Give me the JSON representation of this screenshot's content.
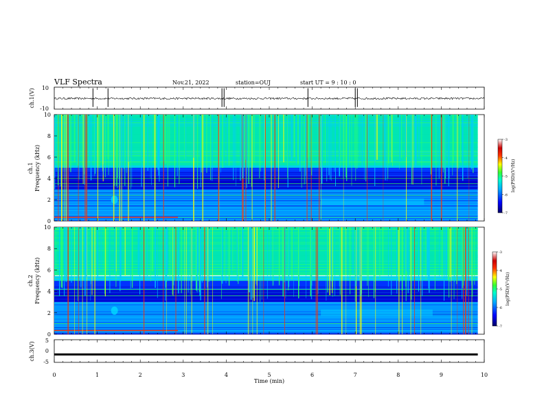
{
  "header": {
    "title": "VLF Spectra",
    "date": "Nov.21, 2022",
    "station": "station=OUJ",
    "start": "start  UT =   9 : 10 : 0"
  },
  "colors": {
    "colormap": [
      "#000066",
      "#0000cc",
      "#0033ff",
      "#0099ff",
      "#00ccff",
      "#00e6b3",
      "#33ff66",
      "#ccff33",
      "#ffff00",
      "#ff9900",
      "#ff3300",
      "#cc0000",
      "#ffcccc",
      "#ffffff"
    ],
    "trace": "#000000"
  },
  "chart_data": [
    {
      "type": "line",
      "name": "ch1-waveform",
      "ylabel": "ch.1(V)",
      "ylim": [
        -10,
        10
      ],
      "yticks": [
        "10",
        "-10"
      ],
      "xlim": [
        0,
        10
      ],
      "series": [
        {
          "values_approx": "noise centered near 0 V, amplitude about ±1 V with occasional spikes"
        }
      ]
    },
    {
      "type": "heatmap",
      "name": "ch1-spectrogram",
      "ylabel_line1": "ch.1",
      "ylabel_line2": "Frequency (kHz)",
      "ylim": [
        0,
        10
      ],
      "yticks": [
        "0",
        "2",
        "4",
        "6",
        "8",
        "10"
      ],
      "xlim": [
        0,
        9.85
      ],
      "colorbar": {
        "label": "log(PSD)(V²/Hz)",
        "range": [
          -7,
          -3
        ],
        "ticks": [
          "-3",
          "-4",
          "-5",
          "-6",
          "-7"
        ]
      },
      "features": {
        "sferic_band_khz": [
          5,
          10
        ],
        "broad_emission_band_khz": [
          5.2,
          6.5
        ],
        "quiet_band_khz": [
          3,
          5
        ],
        "low_band_khz": [
          0,
          3
        ],
        "transmitter_lines_khz": [
          0.35,
          0.55,
          1.0,
          1.3,
          1.6,
          2.4,
          2.9,
          3.5,
          4.0
        ],
        "chorus_event": {
          "time_min": [
            6.2,
            8.6
          ],
          "freq_khz": 1.8
        }
      }
    },
    {
      "type": "heatmap",
      "name": "ch2-spectrogram",
      "ylabel_line1": "ch.2",
      "ylabel_line2": "Frequency (kHz)",
      "ylim": [
        0,
        10
      ],
      "yticks": [
        "0",
        "2",
        "4",
        "6",
        "8",
        "10"
      ],
      "xlim": [
        0,
        9.85
      ],
      "colorbar": {
        "label": "log(PSD)(V²/Hz)",
        "range": [
          -7,
          -3
        ],
        "ticks": [
          "-3",
          "-4",
          "-5",
          "-6",
          "-7"
        ]
      },
      "features": {
        "sferic_band_khz": [
          5,
          10
        ],
        "broad_emission_band_khz": [
          5.5,
          6.8
        ],
        "quiet_band_khz": [
          3,
          5
        ],
        "low_band_khz": [
          0,
          3
        ],
        "transmitter_lines_khz": [
          0.35,
          1.0,
          1.3,
          1.6,
          2.9,
          3.6,
          4.2
        ],
        "chorus_event": {
          "time_min": [
            6.2,
            8.8
          ],
          "freq_khz": 2.0
        }
      }
    },
    {
      "type": "line",
      "name": "ch3-waveform",
      "ylabel": "ch.3(V)",
      "ylim": [
        -5,
        5
      ],
      "yticks": [
        "5",
        "0",
        "-5"
      ],
      "xlim": [
        0,
        10
      ],
      "series": [
        {
          "values_approx": "nearly flat near -1.5 V"
        }
      ]
    }
  ],
  "xaxis": {
    "label": "Time (min)",
    "range": [
      0,
      10
    ],
    "ticks": [
      "0",
      "1",
      "2",
      "3",
      "4",
      "5",
      "6",
      "7",
      "8",
      "9",
      "10"
    ]
  }
}
